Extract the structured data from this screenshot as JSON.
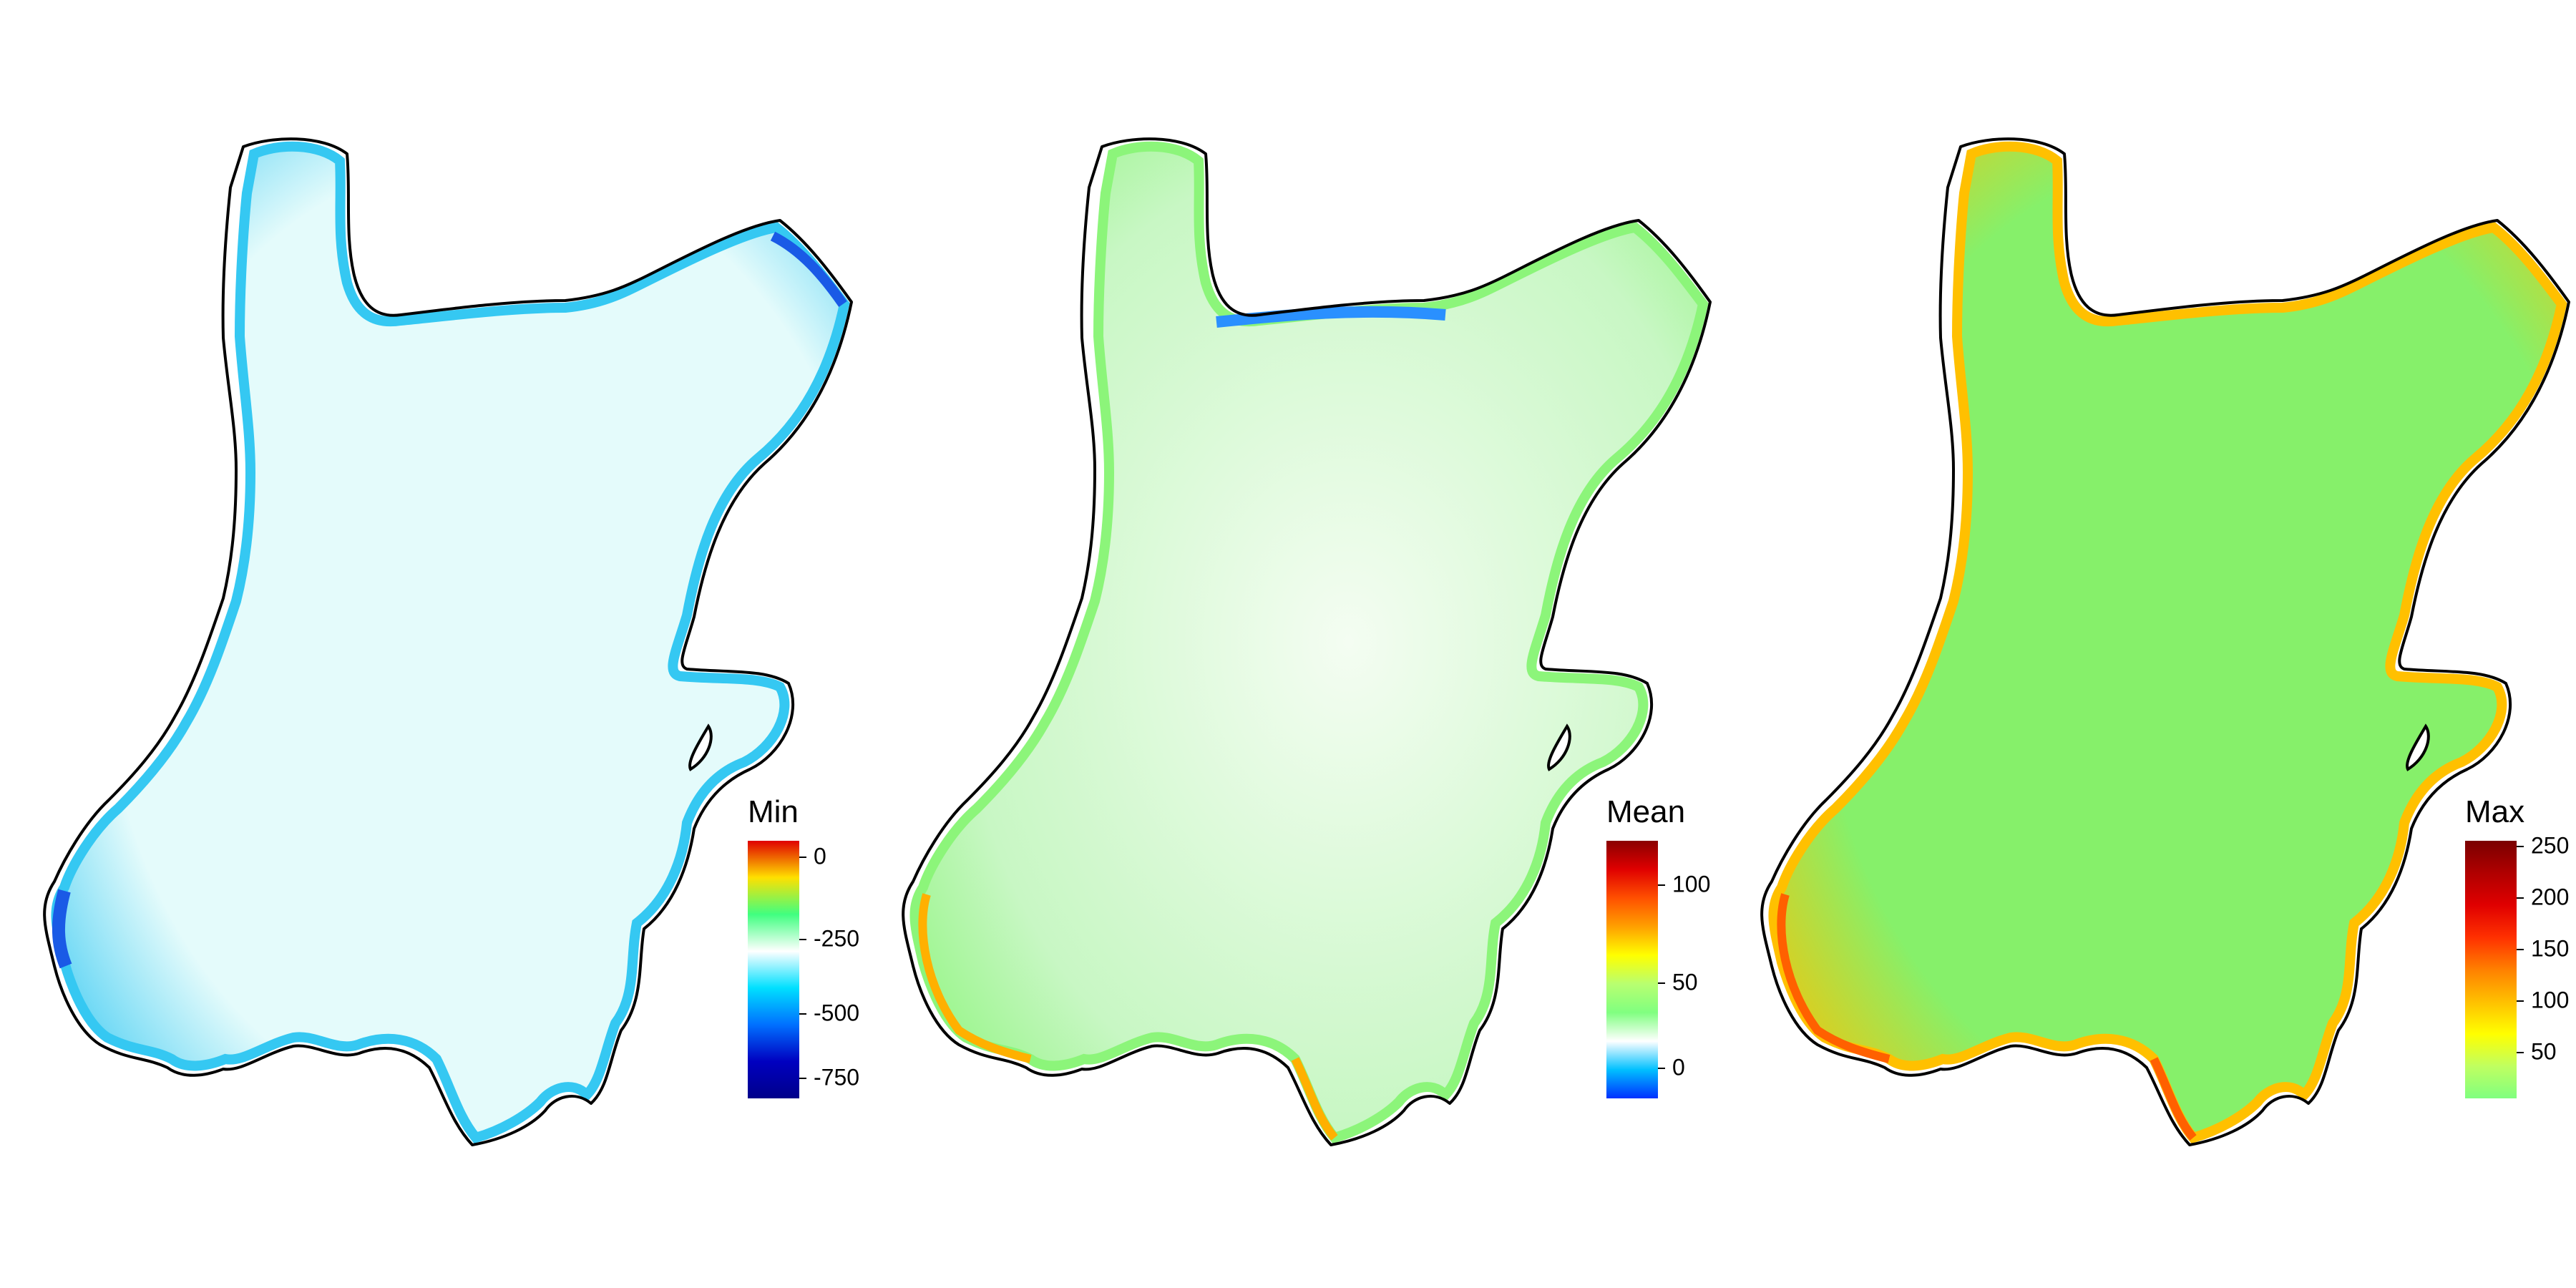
{
  "panels": [
    {
      "id": "min",
      "legend_title": "Min",
      "ticks": [
        "0",
        "-250",
        "-500",
        "-750"
      ],
      "colors": {
        "interior": "#e4fbfb",
        "edge": "#35c8f2",
        "hotspot": "#1a5ae6",
        "outline": "#000000"
      },
      "gradient": [
        "#e00000",
        "#ffe000",
        "#40ff80",
        "#ffffff",
        "#00e0ff",
        "#0070ff",
        "#0000c0",
        "#00008a"
      ]
    },
    {
      "id": "mean",
      "legend_title": "Mean",
      "ticks": [
        "100",
        "50",
        "0"
      ],
      "colors": {
        "interior": "#c8f7c4",
        "white_band": "#f4fdf2",
        "edge": "#8cf57a",
        "warm_edge": "#ffb000",
        "cold_edge": "#2a90ff",
        "outline": "#000000"
      },
      "gradient": [
        "#8a0000",
        "#e00000",
        "#ff5000",
        "#ffa000",
        "#ffff00",
        "#b8ff70",
        "#80ff80",
        "#ffffff",
        "#00c0ff",
        "#0030ff"
      ]
    },
    {
      "id": "max",
      "legend_title": "Max",
      "ticks": [
        "250",
        "200",
        "150",
        "100",
        "50"
      ],
      "colors": {
        "interior": "#86f06a",
        "edge": "#ffc000",
        "warm_edge": "#ff6000",
        "outline": "#000000"
      },
      "gradient": [
        "#7a0000",
        "#b00000",
        "#e00000",
        "#ff3000",
        "#ff8000",
        "#ffc000",
        "#ffff00",
        "#c0ff60",
        "#80ff80"
      ]
    }
  ]
}
